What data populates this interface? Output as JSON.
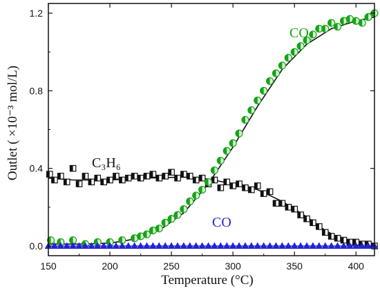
{
  "chart_data": {
    "type": "scatter",
    "xlabel": "Temperature (°C)",
    "ylabel": "Outlet ( ×10⁻³ mol/L)",
    "xlim": [
      150,
      415
    ],
    "ylim": [
      -0.05,
      1.25
    ],
    "x_ticks": [
      150,
      200,
      250,
      300,
      350,
      400
    ],
    "y_ticks": [
      0.0,
      0.4,
      0.8,
      1.2
    ],
    "x_tick_labels": [
      "150",
      "200",
      "250",
      "300",
      "350",
      "400"
    ],
    "y_tick_labels": [
      "0.0",
      "0.4",
      "0.8",
      "1.2"
    ],
    "grid": false,
    "legend": "inline labels",
    "series": [
      {
        "name": "C₃H₆",
        "color": "#111111",
        "marker": "half-filled-square",
        "x": [
          151,
          155,
          160,
          165,
          170,
          175,
          180,
          185,
          190,
          195,
          200,
          205,
          210,
          215,
          220,
          225,
          230,
          235,
          240,
          245,
          250,
          255,
          260,
          265,
          270,
          275,
          280,
          285,
          290,
          295,
          300,
          305,
          310,
          315,
          320,
          325,
          330,
          335,
          340,
          345,
          350,
          355,
          360,
          365,
          370,
          375,
          380,
          385,
          390,
          395,
          400,
          405,
          410,
          415
        ],
        "y": [
          0.37,
          0.34,
          0.36,
          0.33,
          0.4,
          0.32,
          0.36,
          0.33,
          0.35,
          0.33,
          0.34,
          0.36,
          0.34,
          0.35,
          0.36,
          0.35,
          0.36,
          0.37,
          0.35,
          0.36,
          0.38,
          0.35,
          0.37,
          0.36,
          0.34,
          0.35,
          0.32,
          0.34,
          0.3,
          0.33,
          0.31,
          0.32,
          0.3,
          0.29,
          0.31,
          0.27,
          0.28,
          0.22,
          0.22,
          0.2,
          0.19,
          0.16,
          0.14,
          0.12,
          0.1,
          0.07,
          0.05,
          0.04,
          0.03,
          0.02,
          0.02,
          0.01,
          0.01,
          0.0
        ],
        "trend": [
          [
            150,
            0.35
          ],
          [
            170,
            0.34
          ],
          [
            200,
            0.34
          ],
          [
            230,
            0.35
          ],
          [
            260,
            0.355
          ],
          [
            280,
            0.345
          ],
          [
            300,
            0.32
          ],
          [
            320,
            0.29
          ],
          [
            340,
            0.23
          ],
          [
            360,
            0.15
          ],
          [
            375,
            0.08
          ],
          [
            390,
            0.03
          ],
          [
            405,
            0.01
          ],
          [
            415,
            0.0
          ]
        ]
      },
      {
        "name": "CO₂",
        "color": "#16a316",
        "marker": "half-filled-circle",
        "x": [
          152,
          160,
          170,
          180,
          190,
          200,
          210,
          220,
          225,
          230,
          235,
          240,
          245,
          250,
          255,
          260,
          265,
          270,
          275,
          280,
          285,
          290,
          295,
          300,
          305,
          310,
          315,
          320,
          325,
          330,
          335,
          340,
          345,
          350,
          355,
          360,
          365,
          370,
          375,
          380,
          385,
          390,
          395,
          400,
          405,
          410,
          415
        ],
        "y": [
          0.03,
          0.02,
          0.03,
          0.01,
          0.02,
          0.02,
          0.03,
          0.04,
          0.05,
          0.06,
          0.08,
          0.09,
          0.12,
          0.14,
          0.16,
          0.19,
          0.23,
          0.26,
          0.29,
          0.33,
          0.39,
          0.44,
          0.49,
          0.53,
          0.58,
          0.65,
          0.7,
          0.75,
          0.8,
          0.85,
          0.89,
          0.93,
          0.97,
          1.0,
          1.03,
          1.06,
          1.09,
          1.12,
          1.12,
          1.15,
          1.13,
          1.16,
          1.17,
          1.16,
          1.15,
          1.18,
          1.2
        ],
        "trend": [
          [
            150,
            0.01
          ],
          [
            180,
            0.01
          ],
          [
            200,
            0.015
          ],
          [
            220,
            0.035
          ],
          [
            240,
            0.08
          ],
          [
            260,
            0.17
          ],
          [
            280,
            0.32
          ],
          [
            300,
            0.51
          ],
          [
            320,
            0.72
          ],
          [
            340,
            0.91
          ],
          [
            360,
            1.04
          ],
          [
            380,
            1.12
          ],
          [
            400,
            1.16
          ],
          [
            415,
            1.18
          ]
        ]
      },
      {
        "name": "CO",
        "color": "#2323d6",
        "marker": "triangle",
        "x": [
          150,
          155,
          160,
          165,
          170,
          175,
          180,
          185,
          190,
          195,
          200,
          205,
          210,
          215,
          220,
          225,
          230,
          235,
          240,
          245,
          250,
          255,
          260,
          265,
          270,
          275,
          280,
          285,
          290,
          295,
          300,
          305,
          310,
          315,
          320,
          325,
          330,
          335,
          340,
          345,
          350,
          355,
          360,
          365,
          370,
          375,
          380,
          385,
          390,
          395,
          400,
          405,
          410,
          415
        ],
        "y": [
          0.0,
          0.0,
          0.0,
          0.0,
          0.0,
          0.0,
          0.0,
          0.0,
          0.0,
          0.0,
          0.0,
          0.0,
          0.0,
          0.0,
          0.0,
          0.0,
          0.0,
          0.0,
          0.0,
          0.0,
          0.0,
          0.0,
          0.0,
          0.0,
          0.0,
          0.0,
          0.0,
          0.0,
          0.0,
          0.0,
          0.0,
          0.0,
          0.0,
          0.0,
          0.0,
          0.0,
          0.0,
          0.0,
          0.0,
          0.0,
          0.0,
          0.0,
          0.0,
          0.0,
          0.0,
          0.0,
          0.0,
          0.0,
          0.0,
          0.0,
          0.0,
          0.0,
          0.0,
          0.0
        ],
        "trend": [
          [
            150,
            0.0
          ],
          [
            415,
            0.0
          ]
        ]
      }
    ],
    "annotations": [
      {
        "text": "C₃H₆",
        "series": "C₃H₆"
      },
      {
        "text": "CO₂",
        "series": "CO₂"
      },
      {
        "text": "CO",
        "series": "CO"
      }
    ]
  }
}
